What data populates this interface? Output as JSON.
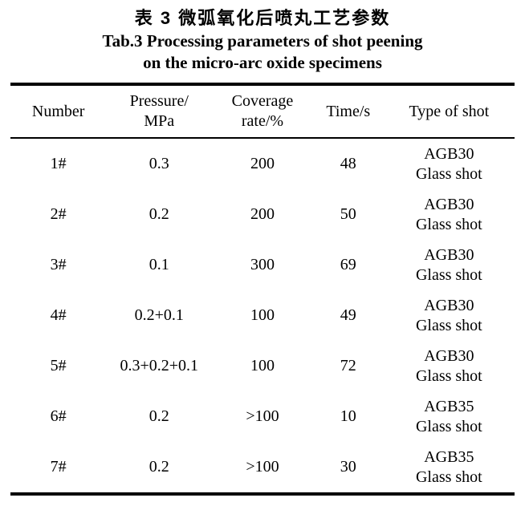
{
  "titles": {
    "zh": "表 3 微弧氧化后喷丸工艺参数",
    "en_line1": "Tab.3 Processing parameters of shot peening",
    "en_line2": "on the micro-arc oxide specimens"
  },
  "table": {
    "headers": [
      "Number",
      "Pressure/\nMPa",
      "Coverage\nrate/%",
      "Time/s",
      "Type of shot"
    ],
    "rows": [
      {
        "number": "1#",
        "pressure": "0.3",
        "coverage": "200",
        "time": "48",
        "shot": "AGB30\nGlass shot"
      },
      {
        "number": "2#",
        "pressure": "0.2",
        "coverage": "200",
        "time": "50",
        "shot": "AGB30\nGlass shot"
      },
      {
        "number": "3#",
        "pressure": "0.1",
        "coverage": "300",
        "time": "69",
        "shot": "AGB30\nGlass shot"
      },
      {
        "number": "4#",
        "pressure": "0.2+0.1",
        "coverage": "100",
        "time": "49",
        "shot": "AGB30\nGlass shot"
      },
      {
        "number": "5#",
        "pressure": "0.3+0.2+0.1",
        "coverage": "100",
        "time": "72",
        "shot": "AGB30\nGlass shot"
      },
      {
        "number": "6#",
        "pressure": "0.2",
        "coverage": ">100",
        "time": "10",
        "shot": "AGB35\nGlass shot"
      },
      {
        "number": "7#",
        "pressure": "0.2",
        "coverage": ">100",
        "time": "30",
        "shot": "AGB35\nGlass shot"
      }
    ]
  },
  "colors": {
    "text": "#000000",
    "background": "#ffffff",
    "rule": "#000000"
  },
  "chart_data": {
    "type": "table",
    "title": "Tab.3 Processing parameters of shot peening on the micro-arc oxide specimens",
    "columns": [
      "Number",
      "Pressure/MPa",
      "Coverage rate/%",
      "Time/s",
      "Type of shot"
    ],
    "rows": [
      [
        "1#",
        "0.3",
        "200",
        "48",
        "AGB30 Glass shot"
      ],
      [
        "2#",
        "0.2",
        "200",
        "50",
        "AGB30 Glass shot"
      ],
      [
        "3#",
        "0.1",
        "300",
        "69",
        "AGB30 Glass shot"
      ],
      [
        "4#",
        "0.2+0.1",
        "100",
        "49",
        "AGB30 Glass shot"
      ],
      [
        "5#",
        "0.3+0.2+0.1",
        "100",
        "72",
        "AGB30 Glass shot"
      ],
      [
        "6#",
        "0.2",
        ">100",
        "10",
        "AGB35 Glass shot"
      ],
      [
        "7#",
        "0.2",
        ">100",
        "30",
        "AGB35 Glass shot"
      ]
    ]
  }
}
